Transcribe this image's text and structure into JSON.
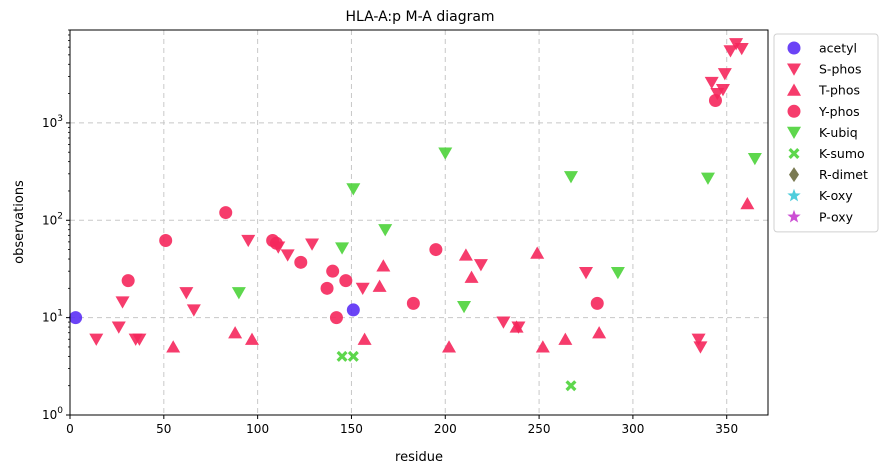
{
  "chart_data": {
    "type": "scatter",
    "title": "HLA-A:p M-A diagram",
    "xlabel": "residue",
    "ylabel": "observations",
    "xlim": [
      0,
      372
    ],
    "ylim": [
      1,
      9000
    ],
    "yscale": "log",
    "grid": true,
    "legend_placement": "outside-right-top",
    "x_ticks": [
      0,
      50,
      100,
      150,
      200,
      250,
      300,
      350
    ],
    "y_ticks": [
      {
        "value": 1,
        "base": "10",
        "exp": "0"
      },
      {
        "value": 10,
        "base": "10",
        "exp": "1"
      },
      {
        "value": 100,
        "base": "10",
        "exp": "2"
      },
      {
        "value": 1000,
        "base": "10",
        "exp": "3"
      }
    ],
    "series": [
      {
        "name": "acetyl",
        "marker": "circle",
        "color": "#5b2ff5",
        "points": [
          [
            3,
            10
          ],
          [
            151,
            12
          ]
        ]
      },
      {
        "name": "S-phos",
        "marker": "triangle-down",
        "color": "#f5275c",
        "points": [
          [
            14,
            6
          ],
          [
            26,
            8
          ],
          [
            28,
            14.5
          ],
          [
            35,
            6
          ],
          [
            37,
            6
          ],
          [
            62,
            18
          ],
          [
            66,
            12
          ],
          [
            95,
            62
          ],
          [
            111,
            53
          ],
          [
            116,
            44
          ],
          [
            129,
            57
          ],
          [
            156,
            20
          ],
          [
            219,
            35
          ],
          [
            231,
            9
          ],
          [
            239,
            8
          ],
          [
            275,
            29
          ],
          [
            335,
            6
          ],
          [
            336,
            5
          ],
          [
            342,
            2600
          ],
          [
            345,
            2000
          ],
          [
            348,
            2200
          ],
          [
            349,
            3200
          ],
          [
            352,
            5500
          ],
          [
            355,
            6500
          ],
          [
            358,
            5800
          ]
        ]
      },
      {
        "name": "T-phos",
        "marker": "triangle-up",
        "color": "#f5275c",
        "points": [
          [
            55,
            5
          ],
          [
            88,
            7
          ],
          [
            97,
            6
          ],
          [
            157,
            6
          ],
          [
            165,
            21
          ],
          [
            167,
            34
          ],
          [
            202,
            5
          ],
          [
            211,
            44
          ],
          [
            214,
            26
          ],
          [
            238,
            8
          ],
          [
            249,
            46
          ],
          [
            252,
            5
          ],
          [
            264,
            6
          ],
          [
            282,
            7
          ],
          [
            361,
            148
          ]
        ]
      },
      {
        "name": "Y-phos",
        "marker": "circle",
        "color": "#f5275c",
        "points": [
          [
            31,
            24
          ],
          [
            51,
            62
          ],
          [
            83,
            120
          ],
          [
            108,
            62
          ],
          [
            110,
            58
          ],
          [
            123,
            37
          ],
          [
            137,
            20
          ],
          [
            140,
            30
          ],
          [
            142,
            10
          ],
          [
            147,
            24
          ],
          [
            183,
            14
          ],
          [
            195,
            50
          ],
          [
            281,
            14
          ],
          [
            344,
            1700
          ]
        ]
      },
      {
        "name": "K-ubiq",
        "marker": "triangle-down",
        "color": "#4cd33a",
        "points": [
          [
            90,
            18
          ],
          [
            145,
            52
          ],
          [
            151,
            210
          ],
          [
            168,
            80
          ],
          [
            200,
            490
          ],
          [
            210,
            13
          ],
          [
            267,
            280
          ],
          [
            292,
            29
          ],
          [
            340,
            270
          ],
          [
            365,
            430
          ]
        ]
      },
      {
        "name": "K-sumo",
        "marker": "x-thick",
        "color": "#4cd33a",
        "points": [
          [
            145,
            4
          ],
          [
            151,
            4
          ],
          [
            267,
            2
          ]
        ]
      },
      {
        "name": "R-dimet",
        "marker": "diamond",
        "color": "#6b6b3f",
        "points": []
      },
      {
        "name": "K-oxy",
        "marker": "star",
        "color": "#3cc8d8",
        "points": []
      },
      {
        "name": "P-oxy",
        "marker": "star",
        "color": "#c63ccf",
        "points": []
      }
    ]
  }
}
